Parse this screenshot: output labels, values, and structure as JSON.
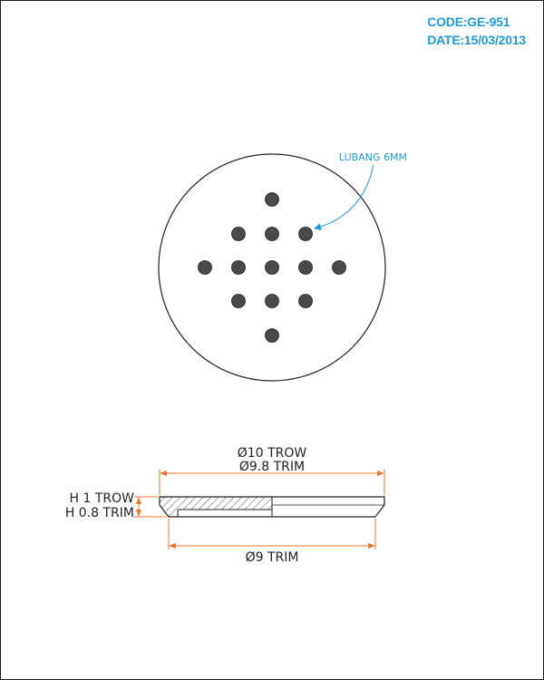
{
  "header": {
    "code": "CODE:GE-951",
    "date": "DATE:15/03/2013"
  },
  "top_view": {
    "callout": "LUBANG 6MM"
  },
  "section_view": {
    "outer_dia_1": "Ø10 TROW",
    "outer_dia_2": "Ø9.8 TRIM",
    "height_1": "H 1 TROW",
    "height_2": "H 0.8 TRIM",
    "bottom_dia": "Ø9 TRIM"
  },
  "colors": {
    "header": "#1e9ad6",
    "callout": "#1e9ad6",
    "dimension": "#e8772e",
    "line": "#222222"
  }
}
